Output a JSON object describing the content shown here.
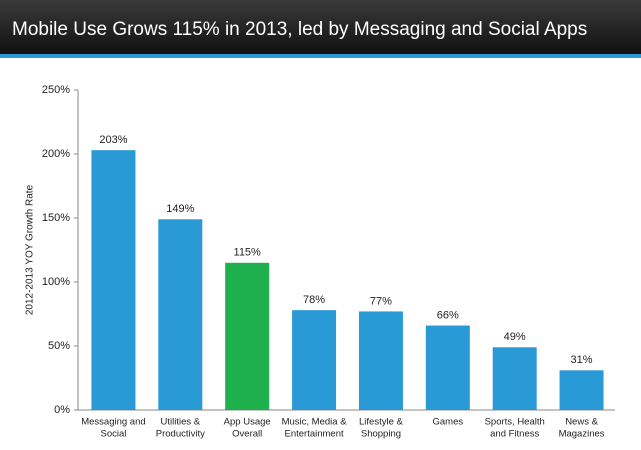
{
  "chart_data": {
    "type": "bar",
    "title": "Mobile Use Grows 115% in 2013, led by Messaging and Social Apps",
    "y_label": "2012-2013 YOY Growth Rate",
    "categories": [
      [
        "Messaging and",
        "Social"
      ],
      [
        "Utilities &",
        "Productivity"
      ],
      [
        "App Usage",
        "Overall"
      ],
      [
        "Music, Media &",
        "Entertainment"
      ],
      [
        "Lifestyle &",
        "Shopping"
      ],
      [
        "Games"
      ],
      [
        "Sports, Health",
        "and Fitness"
      ],
      [
        "News &",
        "Magazines"
      ]
    ],
    "values": [
      203,
      149,
      115,
      78,
      77,
      66,
      49,
      31
    ],
    "value_labels": [
      "203%",
      "149%",
      "115%",
      "78%",
      "77%",
      "66%",
      "49%",
      "31%"
    ],
    "colors": [
      "#2a9ad6",
      "#2a9ad6",
      "#1db04c",
      "#2a9ad6",
      "#2a9ad6",
      "#2a9ad6",
      "#2a9ad6",
      "#2a9ad6"
    ],
    "ylim": [
      0,
      250
    ],
    "yticks": [
      {
        "value": 0,
        "label": "0%"
      },
      {
        "value": 50,
        "label": "50%"
      },
      {
        "value": 100,
        "label": "100%"
      },
      {
        "value": 150,
        "label": "150%"
      },
      {
        "value": 200,
        "label": "200%"
      },
      {
        "value": 250,
        "label": "250%"
      }
    ]
  }
}
